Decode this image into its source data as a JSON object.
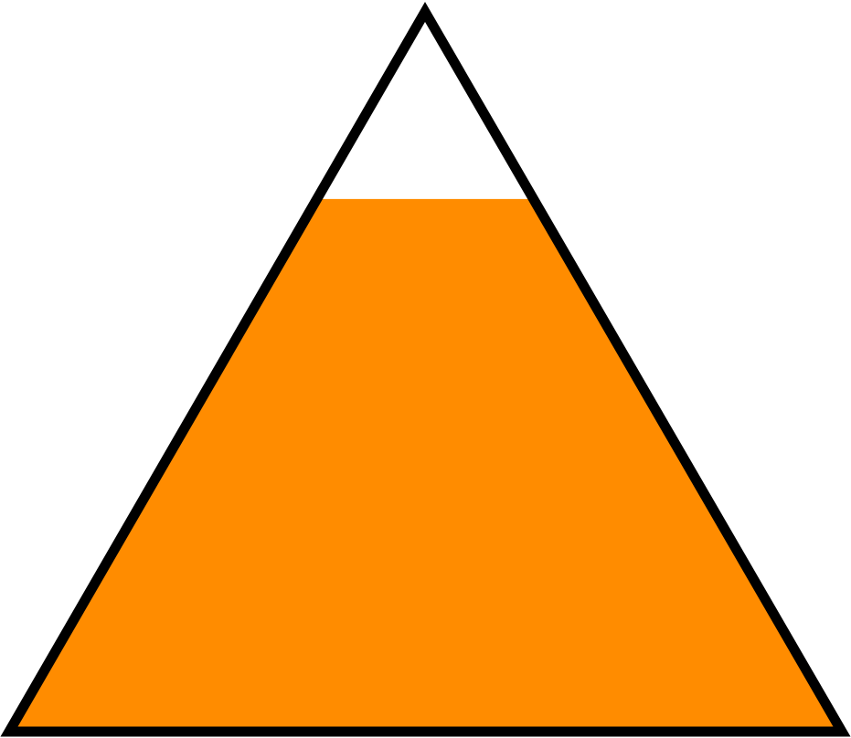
{
  "graphic": {
    "shape": "triangle-level-indicator",
    "fill_level": 0.74,
    "fill_color": "#ff8c00",
    "empty_color": "#ffffff",
    "outline_color": "#000000"
  }
}
